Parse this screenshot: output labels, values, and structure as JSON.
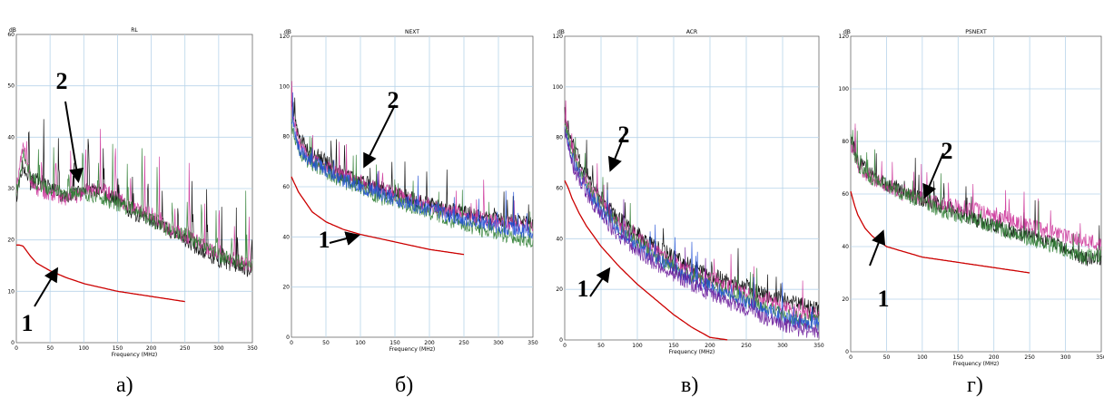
{
  "captions": [
    "а)",
    "б)",
    "в)",
    "г)"
  ],
  "chart_data": [
    {
      "type": "line",
      "title": "RL",
      "ylabel": "dB",
      "xlabel": "Frequency (MHz)",
      "xlim": [
        0,
        350
      ],
      "ylim": [
        0,
        60
      ],
      "xticks": [
        "0",
        "50",
        "100",
        "150",
        "200",
        "250",
        "300",
        "350"
      ],
      "yticks": [
        "0",
        "10",
        "20",
        "30",
        "40",
        "50",
        "60"
      ],
      "markers": [
        "1",
        "2"
      ],
      "series": [
        {
          "color": "#cc0000",
          "x": [
            0,
            5,
            10,
            20,
            30,
            50,
            75,
            100,
            150,
            200,
            250
          ],
          "values": [
            19,
            19,
            18.8,
            17,
            15.5,
            14,
            12.6,
            11.5,
            10,
            9,
            8
          ]
        },
        {
          "color": "#000000",
          "x": [
            0,
            10,
            20,
            30,
            50,
            75,
            100,
            125,
            150,
            175,
            200,
            225,
            250,
            275,
            300,
            325,
            350
          ],
          "values": [
            28,
            35,
            31,
            32,
            30,
            28,
            30,
            29,
            28,
            25,
            24,
            22,
            20,
            18,
            16,
            15,
            14
          ]
        },
        {
          "color": "#cc3399",
          "x": [
            0,
            10,
            20,
            30,
            50,
            75,
            100,
            125,
            150,
            175,
            200,
            225,
            250,
            275,
            300,
            325,
            350
          ],
          "values": [
            30,
            38,
            32,
            30,
            29,
            28,
            29,
            30,
            28,
            26,
            25,
            22,
            21,
            19,
            17,
            16,
            15
          ]
        },
        {
          "color": "#2e7d32",
          "x": [
            0,
            10,
            20,
            30,
            50,
            75,
            100,
            125,
            150,
            175,
            200,
            225,
            250,
            275,
            300,
            325,
            350
          ],
          "values": [
            29,
            36,
            33,
            31,
            30,
            29,
            29,
            28,
            27,
            26,
            24,
            22,
            21,
            19,
            17,
            16,
            15
          ]
        }
      ]
    },
    {
      "type": "line",
      "title": "NEXT",
      "ylabel": "dB",
      "xlabel": "Frequency (MHz)",
      "xlim": [
        0,
        350
      ],
      "ylim": [
        0,
        120
      ],
      "xticks": [
        "0",
        "50",
        "100",
        "150",
        "200",
        "250",
        "300",
        "350"
      ],
      "yticks": [
        "0",
        "20",
        "40",
        "60",
        "80",
        "100",
        "120"
      ],
      "markers": [
        "1",
        "2"
      ],
      "series": [
        {
          "color": "#cc0000",
          "x": [
            0,
            5,
            10,
            20,
            30,
            50,
            75,
            100,
            150,
            200,
            250
          ],
          "values": [
            64,
            61,
            58,
            54,
            50,
            46,
            43,
            41,
            38,
            35,
            33
          ]
        },
        {
          "color": "#000000",
          "x": [
            0,
            10,
            25,
            50,
            75,
            100,
            125,
            150,
            175,
            200,
            225,
            250,
            275,
            300,
            325,
            350
          ],
          "values": [
            95,
            80,
            75,
            70,
            65,
            63,
            60,
            58,
            55,
            53,
            51,
            50,
            48,
            47,
            46,
            45
          ]
        },
        {
          "color": "#cc3399",
          "x": [
            0,
            10,
            25,
            50,
            75,
            100,
            125,
            150,
            175,
            200,
            225,
            250,
            275,
            300,
            325,
            350
          ],
          "values": [
            90,
            78,
            72,
            68,
            64,
            62,
            59,
            57,
            55,
            52,
            50,
            49,
            47,
            46,
            45,
            44
          ]
        },
        {
          "color": "#2e7d32",
          "x": [
            0,
            10,
            25,
            50,
            75,
            100,
            125,
            150,
            175,
            200,
            225,
            250,
            275,
            300,
            325,
            350
          ],
          "values": [
            85,
            74,
            70,
            66,
            62,
            60,
            56,
            54,
            52,
            50,
            47,
            45,
            43,
            41,
            40,
            38
          ]
        },
        {
          "color": "#1f4fd6",
          "x": [
            0,
            10,
            25,
            50,
            75,
            100,
            125,
            150,
            175,
            200,
            225,
            250,
            275,
            300,
            325,
            350
          ],
          "values": [
            88,
            76,
            71,
            67,
            63,
            60,
            58,
            55,
            53,
            51,
            49,
            47,
            46,
            44,
            43,
            42
          ]
        }
      ]
    },
    {
      "type": "line",
      "title": "ACR",
      "ylabel": "dB",
      "xlabel": "Frequency (MHz)",
      "xlim": [
        0,
        350
      ],
      "ylim": [
        0,
        120
      ],
      "xticks": [
        "0",
        "50",
        "100",
        "150",
        "200",
        "250",
        "300",
        "350"
      ],
      "yticks": [
        "0",
        "20",
        "40",
        "60",
        "80",
        "100",
        "120"
      ],
      "markers": [
        "1",
        "2"
      ],
      "series": [
        {
          "color": "#cc0000",
          "x": [
            0,
            5,
            10,
            20,
            30,
            50,
            75,
            100,
            125,
            150,
            175,
            200,
            225
          ],
          "values": [
            63,
            60,
            56,
            50,
            45,
            37,
            29,
            22,
            16,
            10,
            5,
            1,
            0
          ]
        },
        {
          "color": "#000000",
          "x": [
            0,
            10,
            25,
            50,
            75,
            100,
            125,
            150,
            175,
            200,
            225,
            250,
            275,
            300,
            325,
            350
          ],
          "values": [
            90,
            78,
            68,
            56,
            48,
            42,
            37,
            33,
            29,
            26,
            23,
            21,
            18,
            16,
            14,
            12
          ]
        },
        {
          "color": "#cc3399",
          "x": [
            0,
            10,
            25,
            50,
            75,
            100,
            125,
            150,
            175,
            200,
            225,
            250,
            275,
            300,
            325,
            350
          ],
          "values": [
            88,
            76,
            65,
            54,
            46,
            40,
            35,
            30,
            27,
            24,
            21,
            18,
            16,
            13,
            11,
            10
          ]
        },
        {
          "color": "#2e7d32",
          "x": [
            0,
            10,
            25,
            50,
            75,
            100,
            125,
            150,
            175,
            200,
            225,
            250,
            275,
            300,
            325,
            350
          ],
          "values": [
            86,
            74,
            64,
            53,
            45,
            39,
            33,
            29,
            25,
            22,
            19,
            16,
            13,
            10,
            8,
            7
          ]
        },
        {
          "color": "#1f4fd6",
          "x": [
            0,
            10,
            25,
            50,
            75,
            100,
            125,
            150,
            175,
            200,
            225,
            250,
            275,
            300,
            325,
            350
          ],
          "values": [
            84,
            72,
            62,
            51,
            43,
            37,
            32,
            28,
            24,
            21,
            18,
            15,
            12,
            9,
            7,
            6
          ]
        },
        {
          "color": "#6a1b9a",
          "x": [
            0,
            10,
            25,
            50,
            75,
            100,
            125,
            150,
            175,
            200,
            225,
            250,
            275,
            300,
            325,
            350
          ],
          "values": [
            82,
            70,
            60,
            49,
            41,
            35,
            30,
            26,
            22,
            18,
            15,
            12,
            9,
            6,
            4,
            3
          ]
        }
      ]
    },
    {
      "type": "line",
      "title": "PSNEXT",
      "ylabel": "dB",
      "xlabel": "Frequency (MHz)",
      "xlim": [
        0,
        350
      ],
      "ylim": [
        0,
        120
      ],
      "xticks": [
        "0",
        "50",
        "100",
        "150",
        "200",
        "250",
        "300",
        "350"
      ],
      "yticks": [
        "0",
        "20",
        "40",
        "60",
        "80",
        "100",
        "120"
      ],
      "markers": [
        "1",
        "2"
      ],
      "series": [
        {
          "color": "#cc0000",
          "x": [
            0,
            5,
            10,
            20,
            30,
            50,
            75,
            100,
            150,
            200,
            250
          ],
          "values": [
            61,
            56,
            52,
            47,
            44,
            40,
            38,
            36,
            34,
            32,
            30
          ]
        },
        {
          "color": "#000000",
          "x": [
            0,
            10,
            25,
            50,
            75,
            100,
            125,
            150,
            175,
            200,
            225,
            250,
            275,
            300,
            325,
            350
          ],
          "values": [
            82,
            72,
            68,
            64,
            61,
            58,
            56,
            53,
            50,
            48,
            46,
            44,
            42,
            40,
            35,
            36
          ]
        },
        {
          "color": "#cc3399",
          "x": [
            0,
            10,
            25,
            50,
            75,
            100,
            125,
            150,
            175,
            200,
            225,
            250,
            275,
            300,
            325,
            350
          ],
          "values": [
            80,
            71,
            67,
            63,
            60,
            58,
            56,
            55,
            54,
            52,
            50,
            48,
            46,
            44,
            42,
            41
          ]
        },
        {
          "color": "#2e7d32",
          "x": [
            0,
            10,
            25,
            50,
            75,
            100,
            125,
            150,
            175,
            200,
            225,
            250,
            275,
            300,
            325,
            350
          ],
          "values": [
            81,
            71,
            67,
            63,
            60,
            57,
            54,
            52,
            50,
            48,
            45,
            43,
            41,
            39,
            36,
            37
          ]
        }
      ]
    }
  ]
}
